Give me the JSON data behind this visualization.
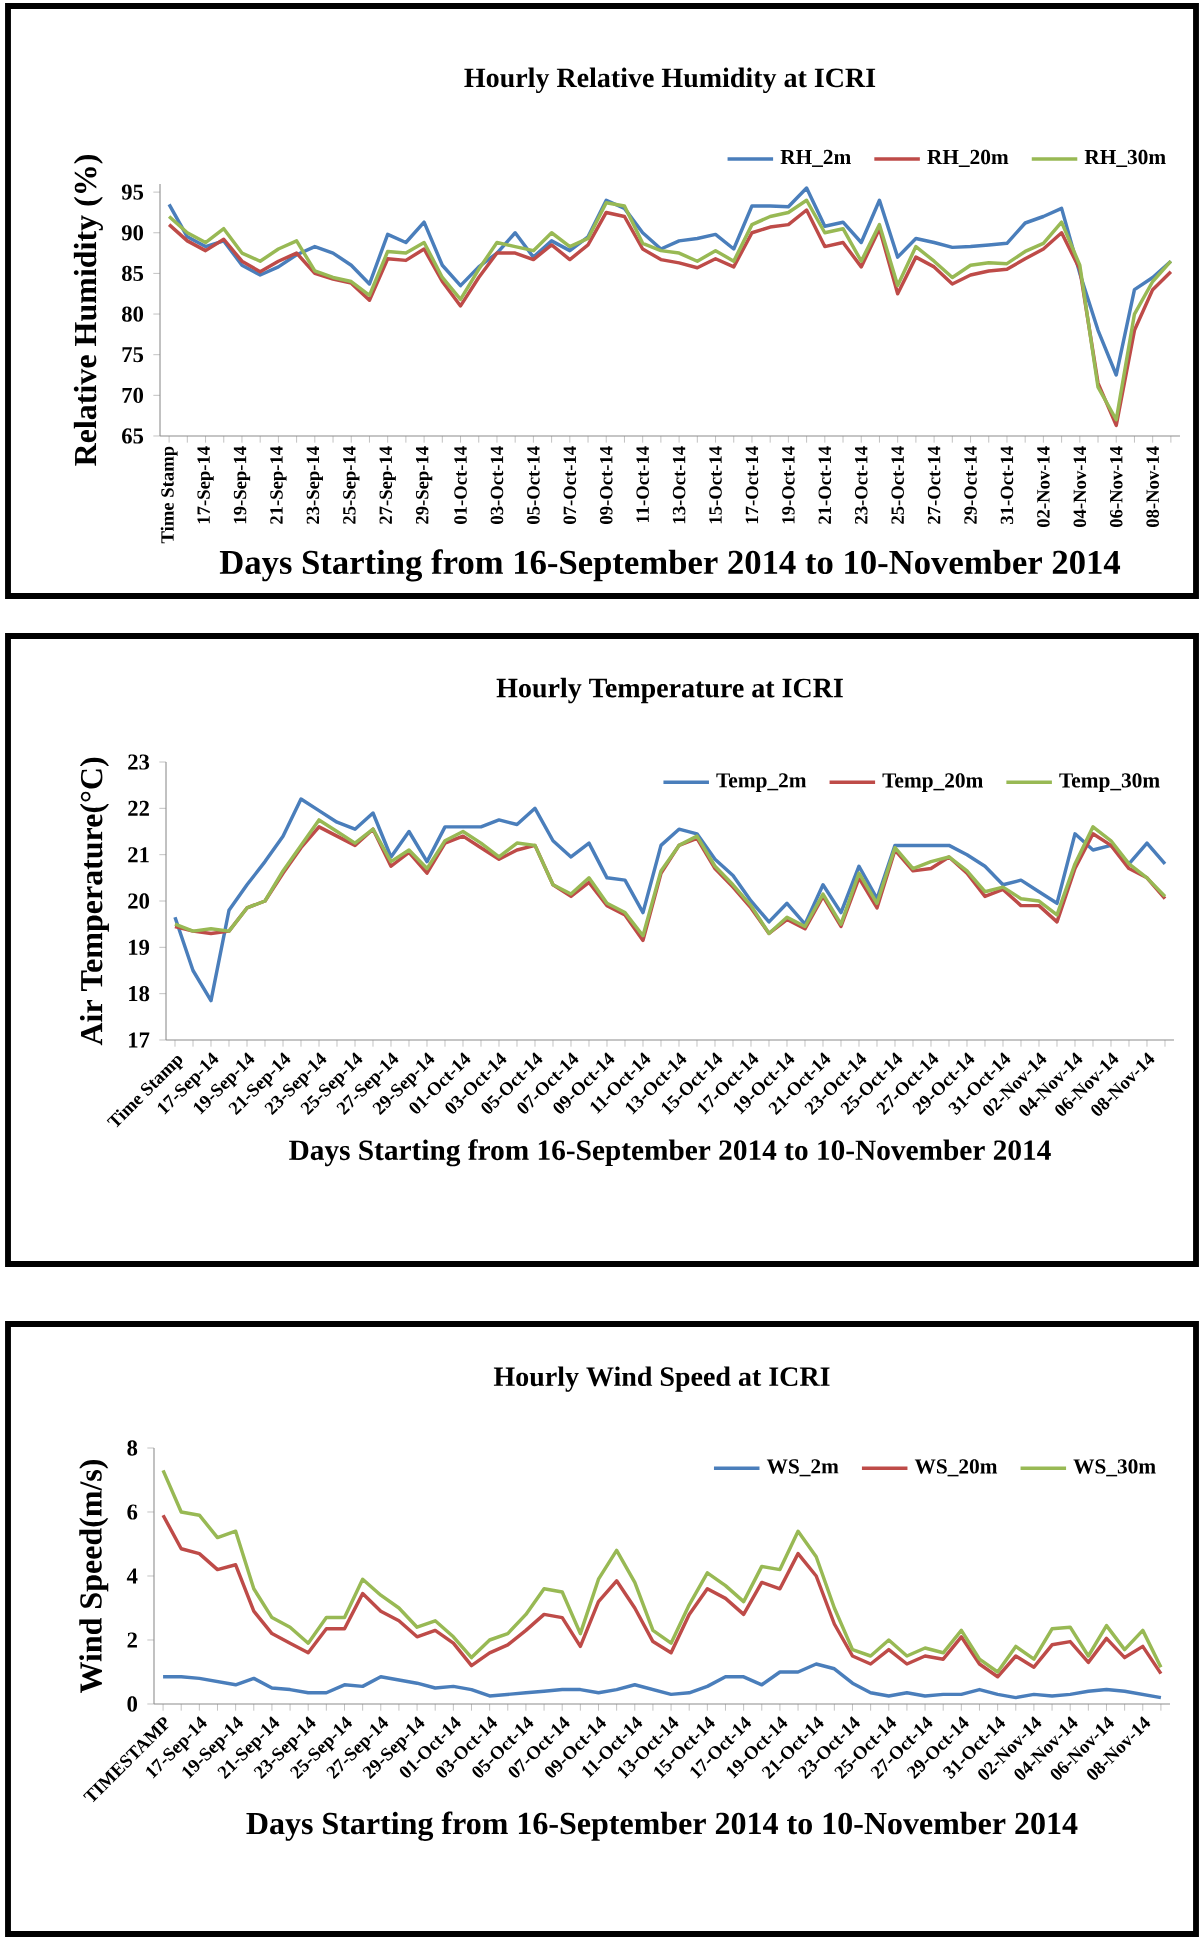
{
  "chart_data": [
    {
      "type": "line",
      "title": "Hourly Relative Humidity at ICRI",
      "xlabel": "Days Starting from 16-September 2014 to 10-November 2014",
      "ylabel": "Relative Humidity (%)",
      "categories": [
        "Time Stamp",
        null,
        "17-Sep-14",
        null,
        "19-Sep-14",
        null,
        "21-Sep-14",
        null,
        "23-Sep-14",
        null,
        "25-Sep-14",
        null,
        "27-Sep-14",
        null,
        "29-Sep-14",
        null,
        "01-Oct-14",
        null,
        "03-Oct-14",
        null,
        "05-Oct-14",
        null,
        "07-Oct-14",
        null,
        "09-Oct-14",
        null,
        "11-Oct-14",
        null,
        "13-Oct-14",
        null,
        "15-Oct-14",
        null,
        "17-Oct-14",
        null,
        "19-Oct-14",
        null,
        "21-Oct-14",
        null,
        "23-Oct-14",
        null,
        "25-Oct-14",
        null,
        "27-Oct-14",
        null,
        "29-Oct-14",
        null,
        "31-Oct-14",
        null,
        "02-Nov-14",
        null,
        "04-Nov-14",
        null,
        "06-Nov-14",
        null,
        "08-Nov-14",
        null
      ],
      "ylim": [
        65,
        96
      ],
      "yticks": [
        65,
        70,
        75,
        80,
        85,
        90,
        95
      ],
      "legend": "top right",
      "series": [
        {
          "name": "RH_2m",
          "color": "#4a7ebb",
          "values": [
            93.5,
            89.5,
            88.3,
            89,
            86,
            84.8,
            85.8,
            87.3,
            88.3,
            87.5,
            86,
            83.7,
            89.8,
            88.8,
            91.3,
            86,
            83.5,
            85.8,
            87.5,
            90,
            87,
            89,
            87.8,
            89.5,
            94,
            93,
            90,
            88,
            89,
            89.3,
            89.8,
            88,
            93.3,
            93.3,
            93.2,
            95.5,
            90.8,
            91.3,
            88.8,
            94,
            87,
            89.3,
            88.8,
            88.2,
            88.3,
            88.5,
            88.7,
            91.2,
            92,
            93,
            85,
            78,
            72.5,
            83,
            84.5,
            86.5
          ]
        },
        {
          "name": "RH_20m",
          "color": "#be4b48",
          "values": [
            91,
            89,
            87.8,
            89.2,
            86.5,
            85.2,
            86.5,
            87.5,
            85,
            84.3,
            83.8,
            81.7,
            86.8,
            86.6,
            88,
            84,
            81,
            84.5,
            87.5,
            87.5,
            86.7,
            88.5,
            86.7,
            88.5,
            92.5,
            92,
            88,
            86.7,
            86.3,
            85.7,
            86.8,
            85.8,
            90,
            90.7,
            91,
            92.8,
            88.3,
            88.8,
            85.8,
            90.5,
            82.5,
            87,
            85.8,
            83.7,
            84.8,
            85.3,
            85.5,
            86.8,
            88,
            90,
            85.5,
            71.5,
            66.3,
            78,
            83,
            85.2
          ]
        },
        {
          "name": "RH_30m",
          "color": "#98b954",
          "values": [
            92,
            90,
            88.8,
            90.5,
            87.5,
            86.5,
            88,
            89,
            85.3,
            84.5,
            84,
            82.3,
            87.7,
            87.5,
            88.8,
            84.5,
            81.8,
            85.5,
            88.8,
            88.3,
            87.8,
            90,
            88.3,
            89.3,
            93.7,
            93.3,
            88.7,
            87.8,
            87.5,
            86.5,
            87.8,
            86.5,
            91,
            92,
            92.5,
            94,
            90,
            90.5,
            86.5,
            91,
            83.5,
            88.3,
            86.5,
            84.5,
            86,
            86.3,
            86.2,
            87.7,
            88.7,
            91.3,
            86,
            71,
            67,
            80,
            84,
            86.5
          ]
        }
      ]
    },
    {
      "type": "line",
      "title": "Hourly Temperature at ICRI",
      "xlabel": "Days Starting from 16-September 2014 to 10-November 2014",
      "ylabel": "Air Temperature(°C)",
      "categories": [
        "Time Stamp",
        null,
        "17-Sep-14",
        null,
        "19-Sep-14",
        null,
        "21-Sep-14",
        null,
        "23-Sep-14",
        null,
        "25-Sep-14",
        null,
        "27-Sep-14",
        null,
        "29-Sep-14",
        null,
        "01-Oct-14",
        null,
        "03-Oct-14",
        null,
        "05-Oct-14",
        null,
        "07-Oct-14",
        null,
        "09-Oct-14",
        null,
        "11-Oct-14",
        null,
        "13-Oct-14",
        null,
        "15-Oct-14",
        null,
        "17-Oct-14",
        null,
        "19-Oct-14",
        null,
        "21-Oct-14",
        null,
        "23-Oct-14",
        null,
        "25-Oct-14",
        null,
        "27-Oct-14",
        null,
        "29-Oct-14",
        null,
        "31-Oct-14",
        null,
        "02-Nov-14",
        null,
        "04-Nov-14",
        null,
        "06-Nov-14",
        null,
        "08-Nov-14",
        null
      ],
      "ylim": [
        17,
        23
      ],
      "yticks": [
        17,
        18,
        19,
        20,
        21,
        22,
        23
      ],
      "legend": "top right",
      "series": [
        {
          "name": "Temp_2m",
          "color": "#4a7ebb",
          "values": [
            19.65,
            18.5,
            17.85,
            19.8,
            20.35,
            20.85,
            21.4,
            22.2,
            21.95,
            21.7,
            21.55,
            21.9,
            20.95,
            21.5,
            20.85,
            21.6,
            21.6,
            21.6,
            21.75,
            21.65,
            22.0,
            21.3,
            20.95,
            21.25,
            20.5,
            20.45,
            19.75,
            21.2,
            21.55,
            21.45,
            20.9,
            20.55,
            20.0,
            19.55,
            19.95,
            19.5,
            20.35,
            19.75,
            20.75,
            20.05,
            21.2,
            21.2,
            21.2,
            21.2,
            21.0,
            20.75,
            20.35,
            20.45,
            20.2,
            19.95,
            21.45,
            21.1,
            21.2,
            20.8,
            21.25,
            20.8
          ]
        },
        {
          "name": "Temp_20m",
          "color": "#be4b48",
          "values": [
            19.45,
            19.35,
            19.3,
            19.35,
            19.85,
            20.0,
            20.6,
            21.15,
            21.6,
            21.4,
            21.2,
            21.55,
            20.75,
            21.05,
            20.6,
            21.25,
            21.4,
            21.15,
            20.9,
            21.1,
            21.2,
            20.35,
            20.1,
            20.4,
            19.9,
            19.7,
            19.15,
            20.6,
            21.2,
            21.35,
            20.7,
            20.3,
            19.85,
            19.3,
            19.6,
            19.4,
            20.1,
            19.45,
            20.5,
            19.85,
            21.1,
            20.65,
            20.7,
            20.95,
            20.6,
            20.1,
            20.25,
            19.9,
            19.9,
            19.55,
            20.7,
            21.45,
            21.2,
            20.7,
            20.5,
            20.05
          ]
        },
        {
          "name": "Temp_30m",
          "color": "#98b954",
          "values": [
            19.5,
            19.35,
            19.4,
            19.35,
            19.85,
            20.0,
            20.65,
            21.2,
            21.75,
            21.5,
            21.25,
            21.55,
            20.85,
            21.1,
            20.7,
            21.3,
            21.5,
            21.25,
            20.95,
            21.25,
            21.2,
            20.35,
            20.15,
            20.5,
            19.95,
            19.75,
            19.25,
            20.65,
            21.2,
            21.4,
            20.75,
            20.35,
            19.9,
            19.3,
            19.65,
            19.45,
            20.15,
            19.5,
            20.6,
            19.95,
            21.15,
            20.7,
            20.85,
            20.95,
            20.65,
            20.2,
            20.3,
            20.05,
            20.0,
            19.7,
            20.8,
            21.6,
            21.3,
            20.8,
            20.5,
            20.1
          ]
        }
      ]
    },
    {
      "type": "line",
      "title": "Hourly Wind Speed at ICRI",
      "xlabel": "Days Starting from 16-September 2014 to 10-November 2014",
      "ylabel": "Wind Speed(m/s)",
      "categories": [
        "TIMESTAMP",
        null,
        "17-Sep-14",
        null,
        "19-Sep-14",
        null,
        "21-Sep-14",
        null,
        "23-Sep-14",
        null,
        "25-Sep-14",
        null,
        "27-Sep-14",
        null,
        "29-Sep-14",
        null,
        "01-Oct-14",
        null,
        "03-Oct-14",
        null,
        "05-Oct-14",
        null,
        "07-Oct-14",
        null,
        "09-Oct-14",
        null,
        "11-Oct-14",
        null,
        "13-Oct-14",
        null,
        "15-Oct-14",
        null,
        "17-Oct-14",
        null,
        "19-Oct-14",
        null,
        "21-Oct-14",
        null,
        "23-Oct-14",
        null,
        "25-Oct-14",
        null,
        "27-Oct-14",
        null,
        "29-Oct-14",
        null,
        "31-Oct-14",
        null,
        "02-Nov-14",
        null,
        "04-Nov-14",
        null,
        "06-Nov-14",
        null,
        "08-Nov-14",
        null
      ],
      "ylim": [
        0,
        8
      ],
      "yticks": [
        0,
        2,
        4,
        6,
        8
      ],
      "legend": "top right",
      "series": [
        {
          "name": "WS_2m",
          "color": "#4a7ebb",
          "values": [
            0.85,
            0.85,
            0.8,
            0.7,
            0.6,
            0.8,
            0.5,
            0.45,
            0.35,
            0.35,
            0.6,
            0.55,
            0.85,
            0.75,
            0.65,
            0.5,
            0.55,
            0.45,
            0.25,
            0.3,
            0.35,
            0.4,
            0.45,
            0.45,
            0.35,
            0.45,
            0.6,
            0.45,
            0.3,
            0.35,
            0.55,
            0.85,
            0.85,
            0.6,
            1.0,
            1.0,
            1.25,
            1.1,
            0.65,
            0.35,
            0.25,
            0.35,
            0.25,
            0.3,
            0.3,
            0.45,
            0.3,
            0.2,
            0.3,
            0.25,
            0.3,
            0.4,
            0.45,
            0.4,
            0.3,
            0.2
          ]
        },
        {
          "name": "WS_20m",
          "color": "#be4b48",
          "values": [
            5.9,
            4.85,
            4.7,
            4.2,
            4.35,
            2.9,
            2.2,
            1.9,
            1.6,
            2.35,
            2.35,
            3.45,
            2.9,
            2.6,
            2.1,
            2.3,
            1.9,
            1.2,
            1.6,
            1.85,
            2.3,
            2.8,
            2.7,
            1.8,
            3.2,
            3.85,
            3.0,
            1.95,
            1.6,
            2.8,
            3.6,
            3.3,
            2.8,
            3.8,
            3.6,
            4.7,
            4.0,
            2.5,
            1.5,
            1.25,
            1.7,
            1.25,
            1.5,
            1.4,
            2.1,
            1.25,
            0.85,
            1.5,
            1.15,
            1.85,
            1.95,
            1.3,
            2.05,
            1.45,
            1.8,
            0.95
          ]
        },
        {
          "name": "WS_30m",
          "color": "#98b954",
          "values": [
            7.3,
            6.0,
            5.9,
            5.2,
            5.4,
            3.6,
            2.7,
            2.4,
            1.9,
            2.7,
            2.7,
            3.9,
            3.4,
            3.0,
            2.4,
            2.6,
            2.1,
            1.45,
            2.0,
            2.2,
            2.8,
            3.6,
            3.5,
            2.2,
            3.9,
            4.8,
            3.8,
            2.3,
            1.9,
            3.1,
            4.1,
            3.7,
            3.2,
            4.3,
            4.2,
            5.4,
            4.6,
            3.0,
            1.7,
            1.5,
            2.0,
            1.5,
            1.75,
            1.6,
            2.3,
            1.4,
            1.0,
            1.8,
            1.4,
            2.35,
            2.4,
            1.5,
            2.45,
            1.7,
            2.3,
            1.15
          ]
        }
      ]
    }
  ]
}
